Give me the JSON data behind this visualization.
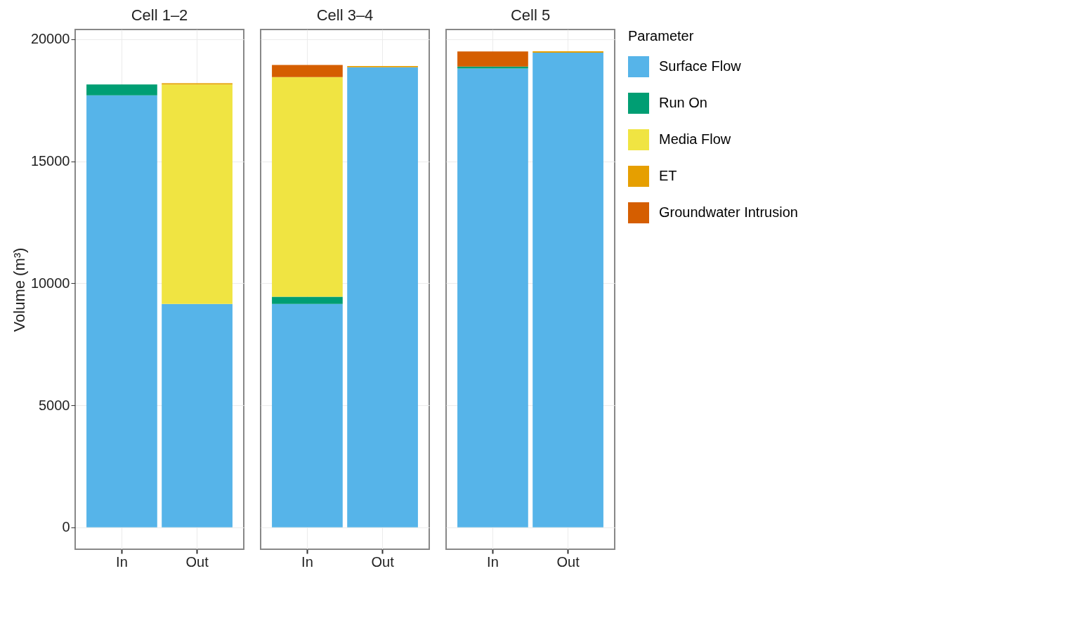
{
  "chart_data": [
    {
      "type": "bar",
      "title": "Cell 1–2",
      "ylabel": "Volume (m³)",
      "categories": [
        "In",
        "Out"
      ],
      "stacked": true,
      "ylim": [
        -900,
        20400
      ],
      "yticks": [
        0,
        5000,
        10000,
        15000,
        20000
      ],
      "grid": true,
      "legend": "right",
      "legend_title": "Parameter",
      "series": [
        {
          "name": "Surface Flow",
          "color": "#56b4e9",
          "values": [
            17700,
            9150
          ]
        },
        {
          "name": "Run On",
          "color": "#009e73",
          "values": [
            450,
            0
          ]
        },
        {
          "name": "Media Flow",
          "color": "#f0e442",
          "values": [
            0,
            9000
          ]
        },
        {
          "name": "ET",
          "color": "#e69f00",
          "values": [
            0,
            50
          ]
        },
        {
          "name": "Groundwater Intrusion",
          "color": "#d55e00",
          "values": [
            0,
            0
          ]
        }
      ]
    },
    {
      "type": "bar",
      "title": "Cell 3–4",
      "categories": [
        "In",
        "Out"
      ],
      "stacked": true,
      "ylim": [
        -900,
        20400
      ],
      "yticks": [
        0,
        5000,
        10000,
        15000,
        20000
      ],
      "grid": true,
      "tick_labels": "x",
      "series": [
        {
          "color": "#56b4e9",
          "values": [
            9150,
            18850
          ]
        },
        {
          "color": "#009e73",
          "values": [
            300,
            0
          ]
        },
        {
          "color": "#f0e442",
          "values": [
            9000,
            0
          ]
        },
        {
          "color": "#e69f00",
          "values": [
            0,
            50
          ]
        },
        {
          "color": "#d55e00",
          "values": [
            500,
            0
          ]
        }
      ]
    },
    {
      "type": "bar",
      "title": "Cell 5",
      "categories": [
        "In",
        "Out"
      ],
      "stacked": true,
      "ylim": [
        -900,
        20400
      ],
      "yticks": [
        0,
        5000,
        10000,
        15000,
        20000
      ],
      "grid": true,
      "tick_labels": "x",
      "series": [
        {
          "color": "#56b4e9",
          "values": [
            18800,
            19450
          ]
        },
        {
          "color": "#009e73",
          "values": [
            80,
            0
          ]
        },
        {
          "color": "#f0e442",
          "values": [
            0,
            0
          ]
        },
        {
          "color": "#e69f00",
          "values": [
            0,
            60
          ]
        },
        {
          "color": "#d55e00",
          "values": [
            620,
            0
          ]
        }
      ]
    }
  ]
}
